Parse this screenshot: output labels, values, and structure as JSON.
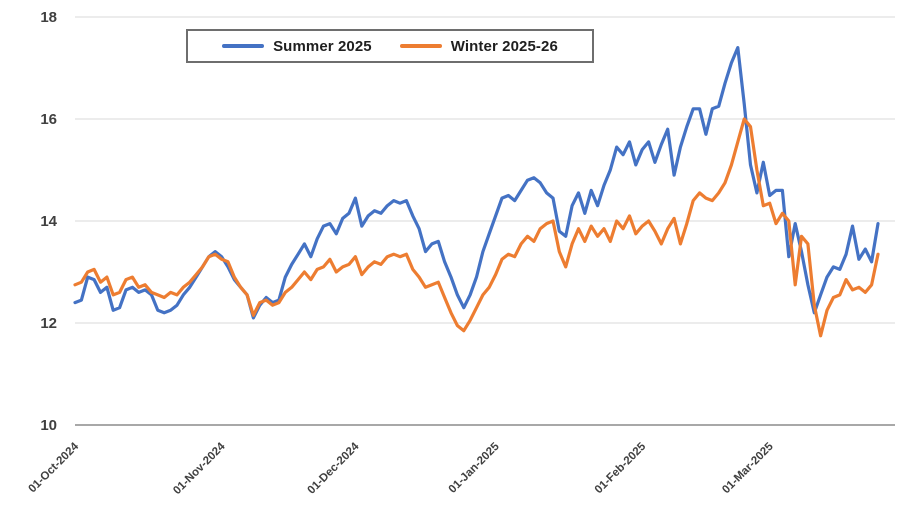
{
  "chart_data": {
    "type": "line",
    "title": "",
    "xlabel": "",
    "ylabel": "",
    "ylim": [
      10,
      18
    ],
    "y_ticks": [
      10,
      12,
      14,
      16,
      18
    ],
    "grid": true,
    "legend_position": "top",
    "x_ticks": [
      {
        "index": 0,
        "label": "01-Oct-2024"
      },
      {
        "index": 23,
        "label": "01-Nov-2024"
      },
      {
        "index": 44,
        "label": "01-Dec-2024"
      },
      {
        "index": 66,
        "label": "01-Jan-2025"
      },
      {
        "index": 89,
        "label": "01-Feb-2025"
      },
      {
        "index": 109,
        "label": "01-Mar-2025"
      }
    ],
    "series": [
      {
        "name": "Summer 2025",
        "color": "#4472C4",
        "values": [
          12.4,
          12.45,
          12.9,
          12.85,
          12.6,
          12.7,
          12.25,
          12.3,
          12.65,
          12.7,
          12.6,
          12.65,
          12.55,
          12.25,
          12.2,
          12.25,
          12.35,
          12.55,
          12.7,
          12.9,
          13.1,
          13.3,
          13.4,
          13.3,
          13.1,
          12.85,
          12.7,
          12.55,
          12.1,
          12.35,
          12.5,
          12.4,
          12.45,
          12.9,
          13.15,
          13.35,
          13.55,
          13.3,
          13.65,
          13.9,
          13.95,
          13.75,
          14.05,
          14.15,
          14.45,
          13.9,
          14.1,
          14.2,
          14.15,
          14.3,
          14.4,
          14.35,
          14.4,
          14.1,
          13.85,
          13.4,
          13.55,
          13.6,
          13.2,
          12.9,
          12.55,
          12.3,
          12.55,
          12.9,
          13.4,
          13.75,
          14.1,
          14.45,
          14.5,
          14.4,
          14.6,
          14.8,
          14.85,
          14.75,
          14.55,
          14.45,
          13.8,
          13.7,
          14.3,
          14.55,
          14.15,
          14.6,
          14.3,
          14.7,
          15.0,
          15.45,
          15.3,
          15.55,
          15.1,
          15.4,
          15.55,
          15.15,
          15.5,
          15.8,
          14.9,
          15.45,
          15.85,
          16.2,
          16.2,
          15.7,
          16.2,
          16.25,
          16.7,
          17.1,
          17.4,
          16.3,
          15.1,
          14.55,
          15.15,
          14.5,
          14.6,
          14.6,
          13.3,
          13.95,
          13.4,
          12.75,
          12.2,
          12.55,
          12.9,
          13.1,
          13.05,
          13.35,
          13.9,
          13.25,
          13.45,
          13.2,
          13.95
        ]
      },
      {
        "name": "Winter 2025-26",
        "color": "#ED7D31",
        "values": [
          12.75,
          12.8,
          13.0,
          13.05,
          12.8,
          12.9,
          12.55,
          12.6,
          12.85,
          12.9,
          12.7,
          12.75,
          12.6,
          12.55,
          12.5,
          12.6,
          12.55,
          12.7,
          12.8,
          12.95,
          13.1,
          13.3,
          13.35,
          13.25,
          13.2,
          12.9,
          12.7,
          12.55,
          12.15,
          12.4,
          12.45,
          12.35,
          12.4,
          12.6,
          12.7,
          12.85,
          13.0,
          12.85,
          13.05,
          13.1,
          13.25,
          13.0,
          13.1,
          13.15,
          13.3,
          12.95,
          13.1,
          13.2,
          13.15,
          13.3,
          13.35,
          13.3,
          13.35,
          13.05,
          12.9,
          12.7,
          12.75,
          12.8,
          12.5,
          12.2,
          11.95,
          11.85,
          12.05,
          12.3,
          12.55,
          12.7,
          12.95,
          13.25,
          13.35,
          13.3,
          13.55,
          13.7,
          13.6,
          13.85,
          13.95,
          14.0,
          13.4,
          13.1,
          13.55,
          13.85,
          13.6,
          13.9,
          13.7,
          13.85,
          13.6,
          14.0,
          13.85,
          14.1,
          13.75,
          13.9,
          14.0,
          13.8,
          13.55,
          13.85,
          14.05,
          13.55,
          13.95,
          14.4,
          14.55,
          14.45,
          14.4,
          14.55,
          14.75,
          15.1,
          15.55,
          16.0,
          15.85,
          15.0,
          14.3,
          14.35,
          13.95,
          14.15,
          14.0,
          12.75,
          13.7,
          13.55,
          12.35,
          11.75,
          12.25,
          12.5,
          12.55,
          12.85,
          12.65,
          12.7,
          12.6,
          12.75,
          13.35
        ]
      }
    ]
  }
}
